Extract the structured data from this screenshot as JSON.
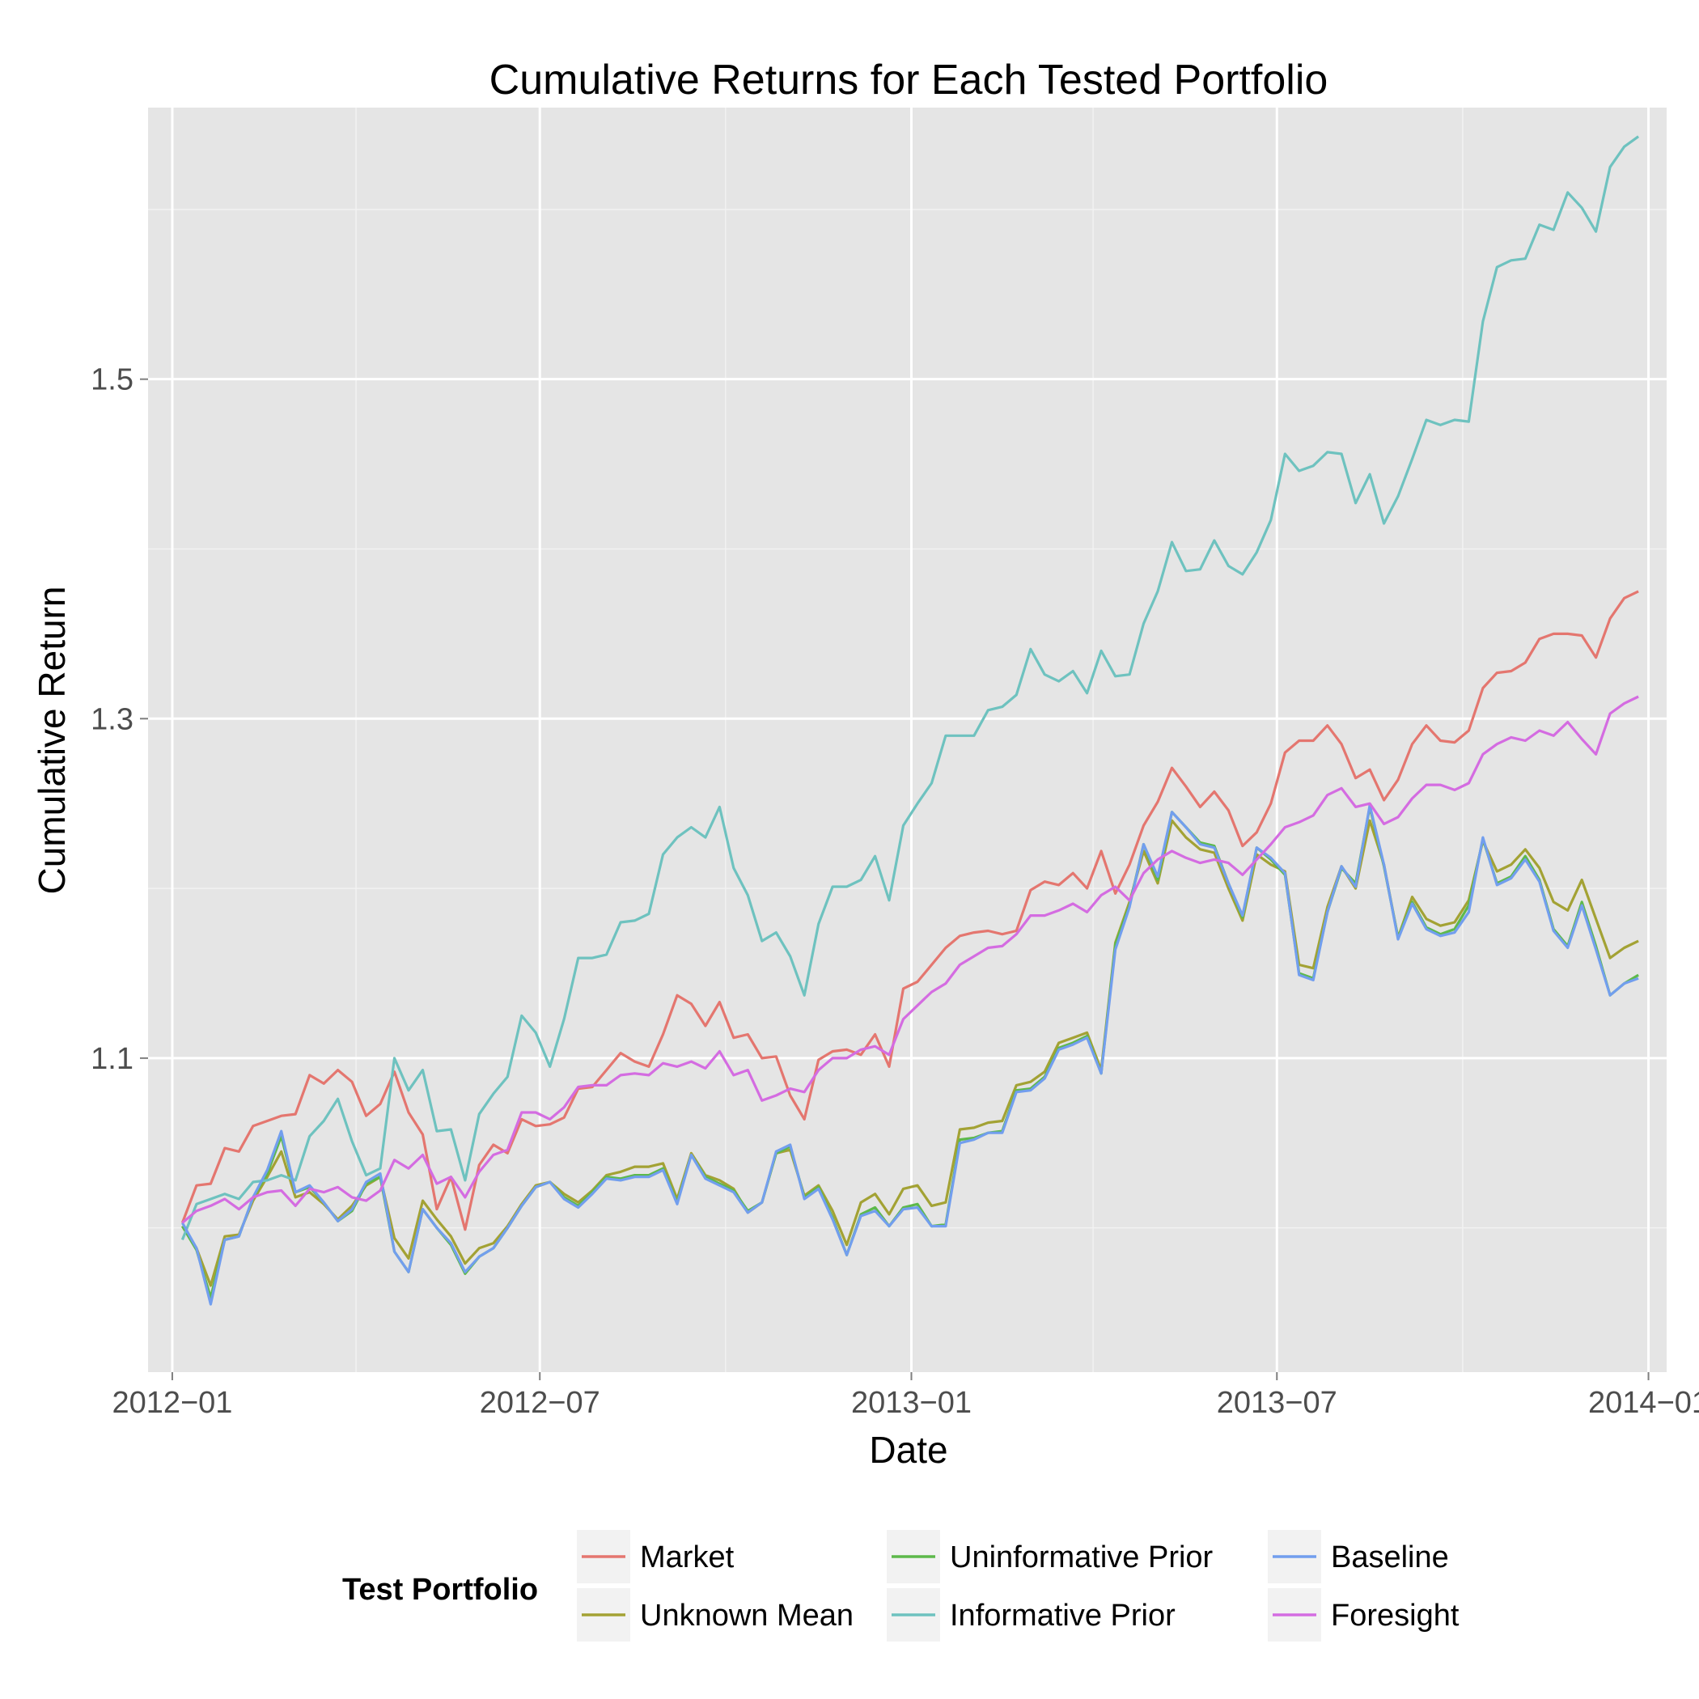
{
  "chart_data": {
    "type": "line",
    "title": "Cumulative Returns for Each Tested Portfolio",
    "xlabel": "Date",
    "ylabel": "Cumulative Return",
    "x_axis": {
      "type": "date",
      "range": [
        "2011-12-20",
        "2014-01-10"
      ],
      "ticks": [
        {
          "value": "2012-01-01",
          "label": "2012−01"
        },
        {
          "value": "2012-07-01",
          "label": "2012−07"
        },
        {
          "value": "2013-01-01",
          "label": "2013−01"
        },
        {
          "value": "2013-07-01",
          "label": "2013−07"
        },
        {
          "value": "2014-01-01",
          "label": "2014−01"
        }
      ],
      "minor_ticks": [
        "2012-04-01",
        "2012-10-01",
        "2013-04-01",
        "2013-10-01"
      ]
    },
    "y_axis": {
      "range": [
        0.915,
        1.66
      ],
      "ticks": [
        {
          "value": 1.1,
          "label": "1.1"
        },
        {
          "value": 1.3,
          "label": "1.3"
        },
        {
          "value": 1.5,
          "label": "1.5"
        }
      ],
      "minor_ticks": [
        1.0,
        1.2,
        1.4,
        1.6
      ]
    },
    "grid": true,
    "legend": {
      "title": "Test Portfolio",
      "position": "bottom"
    },
    "dates": [
      "2012-01-06",
      "2012-01-13",
      "2012-01-20",
      "2012-01-27",
      "2012-02-03",
      "2012-02-10",
      "2012-02-17",
      "2012-02-24",
      "2012-03-02",
      "2012-03-09",
      "2012-03-16",
      "2012-03-23",
      "2012-03-30",
      "2012-04-06",
      "2012-04-13",
      "2012-04-20",
      "2012-04-27",
      "2012-05-04",
      "2012-05-11",
      "2012-05-18",
      "2012-05-25",
      "2012-06-01",
      "2012-06-08",
      "2012-06-15",
      "2012-06-22",
      "2012-06-29",
      "2012-07-06",
      "2012-07-13",
      "2012-07-20",
      "2012-07-27",
      "2012-08-03",
      "2012-08-10",
      "2012-08-17",
      "2012-08-24",
      "2012-08-31",
      "2012-09-07",
      "2012-09-14",
      "2012-09-21",
      "2012-09-28",
      "2012-10-05",
      "2012-10-12",
      "2012-10-19",
      "2012-10-26",
      "2012-11-02",
      "2012-11-09",
      "2012-11-16",
      "2012-11-23",
      "2012-11-30",
      "2012-12-07",
      "2012-12-14",
      "2012-12-21",
      "2012-12-28",
      "2013-01-04",
      "2013-01-11",
      "2013-01-18",
      "2013-01-25",
      "2013-02-01",
      "2013-02-08",
      "2013-02-15",
      "2013-02-22",
      "2013-03-01",
      "2013-03-08",
      "2013-03-15",
      "2013-03-22",
      "2013-03-29",
      "2013-04-05",
      "2013-04-12",
      "2013-04-19",
      "2013-04-26",
      "2013-05-03",
      "2013-05-10",
      "2013-05-17",
      "2013-05-24",
      "2013-05-31",
      "2013-06-07",
      "2013-06-14",
      "2013-06-21",
      "2013-06-28",
      "2013-07-05",
      "2013-07-12",
      "2013-07-19",
      "2013-07-26",
      "2013-08-02",
      "2013-08-09",
      "2013-08-16",
      "2013-08-23",
      "2013-08-30",
      "2013-09-06",
      "2013-09-13",
      "2013-09-20",
      "2013-09-27",
      "2013-10-04",
      "2013-10-11",
      "2013-10-18",
      "2013-10-25",
      "2013-11-01",
      "2013-11-08",
      "2013-11-15",
      "2013-11-22",
      "2013-11-29",
      "2013-12-06",
      "2013-12-13",
      "2013-12-20",
      "2013-12-27"
    ],
    "series": [
      {
        "name": "Market",
        "color": "#E4766F",
        "values": [
          1.003,
          1.025,
          1.026,
          1.047,
          1.045,
          1.06,
          1.063,
          1.066,
          1.067,
          1.09,
          1.085,
          1.093,
          1.086,
          1.066,
          1.073,
          1.092,
          1.068,
          1.055,
          1.011,
          1.03,
          0.999,
          1.037,
          1.049,
          1.044,
          1.064,
          1.06,
          1.061,
          1.065,
          1.082,
          1.083,
          1.093,
          1.103,
          1.098,
          1.095,
          1.114,
          1.137,
          1.132,
          1.119,
          1.133,
          1.112,
          1.114,
          1.1,
          1.101,
          1.078,
          1.064,
          1.099,
          1.104,
          1.105,
          1.102,
          1.114,
          1.095,
          1.141,
          1.145,
          1.155,
          1.165,
          1.172,
          1.174,
          1.175,
          1.173,
          1.175,
          1.199,
          1.204,
          1.202,
          1.209,
          1.2,
          1.222,
          1.197,
          1.214,
          1.237,
          1.251,
          1.271,
          1.26,
          1.248,
          1.257,
          1.246,
          1.225,
          1.233,
          1.25,
          1.28,
          1.287,
          1.287,
          1.296,
          1.285,
          1.265,
          1.27,
          1.252,
          1.264,
          1.285,
          1.296,
          1.287,
          1.286,
          1.293,
          1.318,
          1.327,
          1.328,
          1.333,
          1.347,
          1.35,
          1.35,
          1.349,
          1.336,
          1.359,
          1.371,
          1.375
        ]
      },
      {
        "name": "Unknown Mean",
        "color": "#A3A234",
        "values": [
          1.001,
          0.988,
          0.966,
          0.995,
          0.996,
          1.016,
          1.03,
          1.045,
          1.018,
          1.021,
          1.014,
          1.005,
          1.013,
          1.025,
          1.03,
          0.994,
          0.982,
          1.016,
          1.005,
          0.995,
          0.979,
          0.988,
          0.991,
          1.001,
          1.014,
          1.025,
          1.027,
          1.02,
          1.015,
          1.022,
          1.031,
          1.033,
          1.036,
          1.036,
          1.038,
          1.017,
          1.044,
          1.031,
          1.028,
          1.023,
          1.009,
          1.015,
          1.044,
          1.046,
          1.019,
          1.025,
          1.01,
          0.99,
          1.015,
          1.02,
          1.008,
          1.023,
          1.025,
          1.013,
          1.015,
          1.058,
          1.059,
          1.062,
          1.063,
          1.084,
          1.086,
          1.092,
          1.109,
          1.112,
          1.115,
          1.093,
          1.168,
          1.192,
          1.222,
          1.203,
          1.24,
          1.23,
          1.223,
          1.221,
          1.2,
          1.181,
          1.22,
          1.214,
          1.21,
          1.155,
          1.153,
          1.189,
          1.213,
          1.2,
          1.24,
          1.214,
          1.171,
          1.195,
          1.182,
          1.178,
          1.18,
          1.193,
          1.228,
          1.21,
          1.214,
          1.223,
          1.212,
          1.192,
          1.187,
          1.205,
          1.182,
          1.159,
          1.165,
          1.169
        ]
      },
      {
        "name": "Uninformative Prior",
        "color": "#5DB94B",
        "values": [
          1.001,
          0.987,
          0.959,
          0.993,
          0.995,
          1.018,
          1.032,
          1.054,
          1.021,
          1.024,
          1.015,
          1.004,
          1.01,
          1.026,
          1.03,
          0.986,
          0.974,
          1.011,
          1.0,
          0.99,
          0.973,
          0.983,
          0.988,
          1.0,
          1.013,
          1.024,
          1.027,
          1.018,
          1.013,
          1.021,
          1.03,
          1.029,
          1.031,
          1.031,
          1.035,
          1.015,
          1.043,
          1.03,
          1.026,
          1.022,
          1.01,
          1.015,
          1.044,
          1.048,
          1.018,
          1.024,
          1.006,
          0.984,
          1.008,
          1.012,
          1.001,
          1.012,
          1.014,
          1.001,
          1.002,
          1.052,
          1.053,
          1.056,
          1.057,
          1.081,
          1.082,
          1.089,
          1.106,
          1.109,
          1.113,
          1.091,
          1.167,
          1.19,
          1.226,
          1.205,
          1.245,
          1.236,
          1.227,
          1.225,
          1.203,
          1.183,
          1.224,
          1.217,
          1.208,
          1.15,
          1.147,
          1.186,
          1.212,
          1.203,
          1.248,
          1.213,
          1.171,
          1.192,
          1.177,
          1.173,
          1.176,
          1.19,
          1.229,
          1.203,
          1.207,
          1.219,
          1.205,
          1.176,
          1.166,
          1.192,
          1.166,
          1.137,
          1.144,
          1.149
        ]
      },
      {
        "name": "Informative Prior",
        "color": "#6EC2BF",
        "values": [
          0.993,
          1.014,
          1.017,
          1.02,
          1.017,
          1.027,
          1.028,
          1.031,
          1.028,
          1.054,
          1.063,
          1.076,
          1.051,
          1.031,
          1.035,
          1.1,
          1.081,
          1.093,
          1.057,
          1.058,
          1.028,
          1.067,
          1.079,
          1.089,
          1.125,
          1.115,
          1.095,
          1.123,
          1.159,
          1.159,
          1.161,
          1.18,
          1.181,
          1.185,
          1.22,
          1.23,
          1.236,
          1.23,
          1.248,
          1.212,
          1.196,
          1.169,
          1.174,
          1.16,
          1.137,
          1.179,
          1.201,
          1.201,
          1.205,
          1.219,
          1.193,
          1.237,
          1.25,
          1.262,
          1.29,
          1.29,
          1.29,
          1.305,
          1.307,
          1.314,
          1.341,
          1.326,
          1.322,
          1.328,
          1.315,
          1.34,
          1.325,
          1.326,
          1.356,
          1.375,
          1.404,
          1.387,
          1.388,
          1.405,
          1.39,
          1.385,
          1.398,
          1.417,
          1.456,
          1.446,
          1.449,
          1.457,
          1.456,
          1.427,
          1.444,
          1.415,
          1.431,
          1.453,
          1.476,
          1.473,
          1.476,
          1.475,
          1.534,
          1.566,
          1.57,
          1.571,
          1.591,
          1.588,
          1.61,
          1.601,
          1.587,
          1.625,
          1.637,
          1.643
        ]
      },
      {
        "name": "Baseline",
        "color": "#729EEE",
        "values": [
          1.003,
          0.988,
          0.955,
          0.993,
          0.995,
          1.018,
          1.034,
          1.057,
          1.021,
          1.025,
          1.015,
          1.004,
          1.011,
          1.027,
          1.032,
          0.986,
          0.974,
          1.011,
          1.0,
          0.991,
          0.974,
          0.983,
          0.988,
          1.0,
          1.013,
          1.024,
          1.027,
          1.017,
          1.012,
          1.02,
          1.029,
          1.028,
          1.03,
          1.03,
          1.034,
          1.014,
          1.043,
          1.029,
          1.025,
          1.021,
          1.009,
          1.015,
          1.045,
          1.049,
          1.017,
          1.023,
          1.005,
          0.984,
          1.007,
          1.01,
          1.001,
          1.011,
          1.012,
          1.001,
          1.001,
          1.05,
          1.052,
          1.056,
          1.056,
          1.08,
          1.081,
          1.088,
          1.105,
          1.108,
          1.112,
          1.091,
          1.164,
          1.189,
          1.226,
          1.207,
          1.245,
          1.236,
          1.226,
          1.224,
          1.203,
          1.184,
          1.224,
          1.218,
          1.209,
          1.149,
          1.146,
          1.186,
          1.213,
          1.201,
          1.249,
          1.214,
          1.17,
          1.191,
          1.176,
          1.172,
          1.174,
          1.186,
          1.23,
          1.202,
          1.206,
          1.217,
          1.204,
          1.175,
          1.165,
          1.19,
          1.164,
          1.137,
          1.144,
          1.147
        ]
      },
      {
        "name": "Foresight",
        "color": "#D46CE1",
        "values": [
          1.003,
          1.01,
          1.013,
          1.017,
          1.011,
          1.018,
          1.021,
          1.022,
          1.013,
          1.023,
          1.021,
          1.024,
          1.018,
          1.016,
          1.022,
          1.04,
          1.035,
          1.043,
          1.026,
          1.03,
          1.018,
          1.033,
          1.043,
          1.046,
          1.068,
          1.068,
          1.064,
          1.071,
          1.083,
          1.084,
          1.084,
          1.09,
          1.091,
          1.09,
          1.097,
          1.095,
          1.098,
          1.094,
          1.104,
          1.09,
          1.093,
          1.075,
          1.078,
          1.082,
          1.08,
          1.093,
          1.1,
          1.1,
          1.105,
          1.107,
          1.102,
          1.123,
          1.131,
          1.139,
          1.144,
          1.155,
          1.16,
          1.165,
          1.166,
          1.173,
          1.184,
          1.184,
          1.187,
          1.191,
          1.186,
          1.196,
          1.201,
          1.193,
          1.209,
          1.217,
          1.222,
          1.218,
          1.215,
          1.217,
          1.215,
          1.208,
          1.217,
          1.226,
          1.236,
          1.239,
          1.243,
          1.255,
          1.259,
          1.248,
          1.25,
          1.238,
          1.242,
          1.253,
          1.261,
          1.261,
          1.258,
          1.262,
          1.279,
          1.285,
          1.289,
          1.287,
          1.293,
          1.29,
          1.298,
          1.288,
          1.279,
          1.303,
          1.309,
          1.313
        ]
      }
    ]
  }
}
